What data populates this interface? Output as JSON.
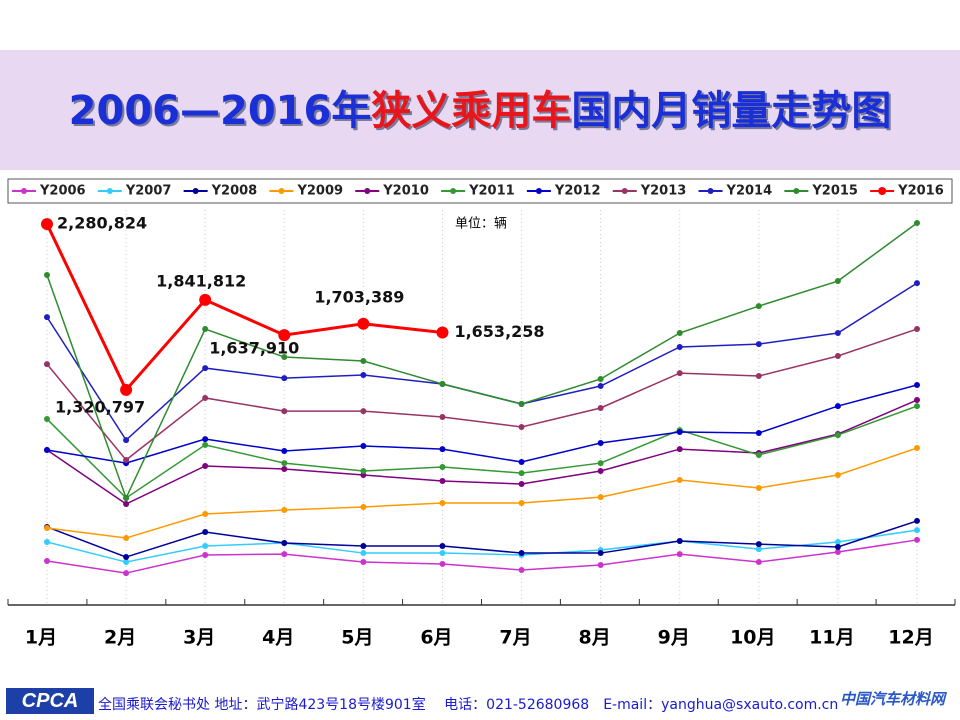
{
  "header": {
    "title_parts": [
      "2006—2016年",
      "狭义乘用车",
      "国内月销量走势图"
    ]
  },
  "chart_data": {
    "type": "line",
    "unit_note": "单位：辆",
    "categories": [
      "1月",
      "2月",
      "3月",
      "4月",
      "5月",
      "6月",
      "7月",
      "8月",
      "9月",
      "10月",
      "11月",
      "12月"
    ],
    "series": [
      {
        "name": "Y2006",
        "color": "#cc33cc",
        "values": [
          330000,
          260000,
          365000,
          370000,
          324000,
          313000,
          278000,
          307000,
          370000,
          324000,
          382000,
          452000
        ]
      },
      {
        "name": "Y2007",
        "color": "#33ccff",
        "values": [
          440000,
          324000,
          417000,
          434000,
          376000,
          376000,
          365000,
          394000,
          446000,
          399000,
          440000,
          509000
        ]
      },
      {
        "name": "Y2008",
        "color": "#000099",
        "values": [
          527000,
          353000,
          498000,
          434000,
          417000,
          417000,
          376000,
          376000,
          446000,
          428000,
          411000,
          562000
        ]
      },
      {
        "name": "Y2009",
        "color": "#ff9900",
        "values": [
          521000,
          463000,
          602000,
          625000,
          643000,
          666000,
          666000,
          700000,
          799000,
          753000,
          828000,
          984000
        ]
      },
      {
        "name": "Y2010",
        "color": "#800080",
        "values": [
          973000,
          660000,
          880000,
          863000,
          828000,
          793000,
          776000,
          851000,
          978000,
          955000,
          1065000,
          1262000
        ]
      },
      {
        "name": "Y2011",
        "color": "#339933",
        "values": [
          1152000,
          695000,
          1002000,
          897000,
          851000,
          874000,
          839000,
          897000,
          1088000,
          944000,
          1059000,
          1227000
        ]
      },
      {
        "name": "Y2012",
        "color": "#0000cc",
        "values": [
          973000,
          897000,
          1036000,
          967000,
          996000,
          978000,
          903000,
          1013000,
          1077000,
          1071000,
          1227000,
          1349000
        ]
      },
      {
        "name": "Y2013",
        "color": "#993366",
        "values": [
          1470000,
          915000,
          1274000,
          1198000,
          1198000,
          1164000,
          1106000,
          1216000,
          1418000,
          1401000,
          1517000,
          1673000
        ]
      },
      {
        "name": "Y2014",
        "color": "#1f1fbf",
        "values": [
          1742000,
          1030000,
          1447000,
          1389000,
          1407000,
          1355000,
          1239000,
          1343000,
          1569000,
          1586000,
          1650000,
          1939000
        ]
      },
      {
        "name": "Y2015",
        "color": "#2e8b2e",
        "values": [
          1986000,
          695000,
          1673000,
          1511000,
          1488000,
          1355000,
          1239000,
          1384000,
          1650000,
          1806000,
          1951000,
          2287000
        ]
      },
      {
        "name": "Y2016",
        "color": "#ff0000",
        "values": [
          2280824,
          1320797,
          1841812,
          1637910,
          1703389,
          1653258,
          null,
          null,
          null,
          null,
          null,
          null
        ],
        "value_labels": [
          "2,280,824",
          "1,320,797",
          "1,841,812",
          "1,637,910",
          "1,703,389",
          "1,653,258",
          null,
          null,
          null,
          null,
          null,
          null
        ]
      }
    ]
  },
  "footer": {
    "logo": "CPCA",
    "contact": "全国乘联会秘书处 地址：武宁路423号18号楼901室　 电话：021-52680968　E-mail：yanghua@sxauto.com.cn",
    "watermark": "中国汽车材料网"
  }
}
